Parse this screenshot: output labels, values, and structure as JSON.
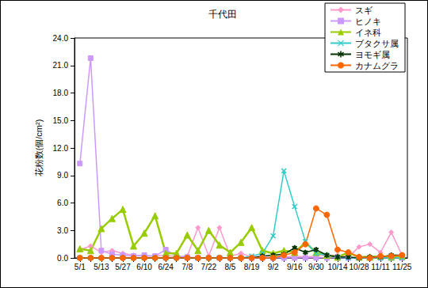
{
  "chart_data": {
    "type": "line",
    "title": "千代田",
    "y_label": "花粉数(個/cm²)",
    "categories": [
      "5/1",
      null,
      "5/13",
      null,
      "5/27",
      null,
      "6/10",
      null,
      "6/24",
      null,
      "7/8",
      null,
      "7/22",
      null,
      "8/5",
      null,
      "8/19",
      null,
      "9/2",
      null,
      "9/16",
      null,
      "9/30",
      null,
      "10/14",
      null,
      "10/28",
      null,
      "11/11",
      null,
      "11/25"
    ],
    "series": [
      {
        "name": "スギ",
        "color": "#ff99cc",
        "marker": "diamond",
        "values": [
          0.9,
          1.3,
          0.6,
          0.8,
          0.5,
          0.3,
          0.2,
          0.2,
          0.3,
          0.1,
          0.2,
          3.3,
          0.2,
          3.3,
          0.2,
          0.5,
          0.1,
          0.2,
          0.2,
          0.1,
          0.2,
          0.1,
          0.2,
          0.3,
          0.3,
          0.1,
          1.2,
          1.5,
          0.6,
          2.8,
          0.3
        ]
      },
      {
        "name": "ヒノキ",
        "color": "#cc99ff",
        "marker": "square",
        "values": [
          10.3,
          21.8,
          0.8,
          0.4,
          0.3,
          0.2,
          0.3,
          0.2,
          0.9,
          0.2,
          0.1,
          0,
          0,
          0,
          0,
          0,
          0,
          0,
          0,
          0,
          0,
          0,
          0,
          0,
          0,
          0,
          0,
          0,
          0,
          0,
          0
        ]
      },
      {
        "name": "イネ科",
        "color": "#99cc00",
        "marker": "triangle",
        "values": [
          1.0,
          0.8,
          3.2,
          4.3,
          5.3,
          1.3,
          2.7,
          4.6,
          0.5,
          0.5,
          2.5,
          0.8,
          3.0,
          1.4,
          0.6,
          1.7,
          3.3,
          0.8,
          0.5,
          0.8,
          0.6,
          1.7,
          0.6,
          0.3,
          0.1,
          0.6,
          0.1,
          0.1,
          0.2,
          0.1,
          0.2
        ]
      },
      {
        "name": "ブタクサ属",
        "color": "#33cccc",
        "marker": "x",
        "values": [
          0,
          0,
          0,
          0,
          0,
          0,
          0,
          0,
          0,
          0,
          0,
          0,
          0,
          0,
          0,
          0,
          0.2,
          0.5,
          2.4,
          9.5,
          5.6,
          1.8,
          0.5,
          0.3,
          0.1,
          0,
          0,
          0,
          0,
          0,
          0
        ]
      },
      {
        "name": "ヨモギ属",
        "color": "#003300",
        "marker": "star",
        "values": [
          0,
          0,
          0,
          0,
          0,
          0,
          0,
          0,
          0,
          0,
          0,
          0,
          0,
          0,
          0,
          0,
          0,
          0.2,
          0.3,
          0.4,
          1.1,
          0.6,
          0.9,
          0.3,
          0.1,
          0.1,
          0,
          0.1,
          0.1,
          0.3,
          0.3
        ]
      },
      {
        "name": "カナムグラ",
        "color": "#ff6600",
        "marker": "circle",
        "values": [
          0,
          0,
          0,
          0,
          0,
          0,
          0,
          0,
          0,
          0,
          0,
          0,
          0,
          0,
          0,
          0,
          0,
          0,
          0,
          0.3,
          0.6,
          1.5,
          5.4,
          4.7,
          0.9,
          0.6,
          0.1,
          0,
          0.2,
          0.2,
          0.3
        ]
      }
    ],
    "ylim": [
      0,
      24
    ],
    "yticks": [
      {
        "value": 0,
        "label": "0.0"
      },
      {
        "value": 3,
        "label": "3.0"
      },
      {
        "value": 6,
        "label": "6.0"
      },
      {
        "value": 9,
        "label": "9.0"
      },
      {
        "value": 12,
        "label": "12.0"
      },
      {
        "value": 15,
        "label": "15.0"
      },
      {
        "value": 18,
        "label": "18.0"
      },
      {
        "value": 21,
        "label": "21.0"
      },
      {
        "value": 24,
        "label": "24.0"
      }
    ],
    "grid": false,
    "legend": "upper right"
  }
}
